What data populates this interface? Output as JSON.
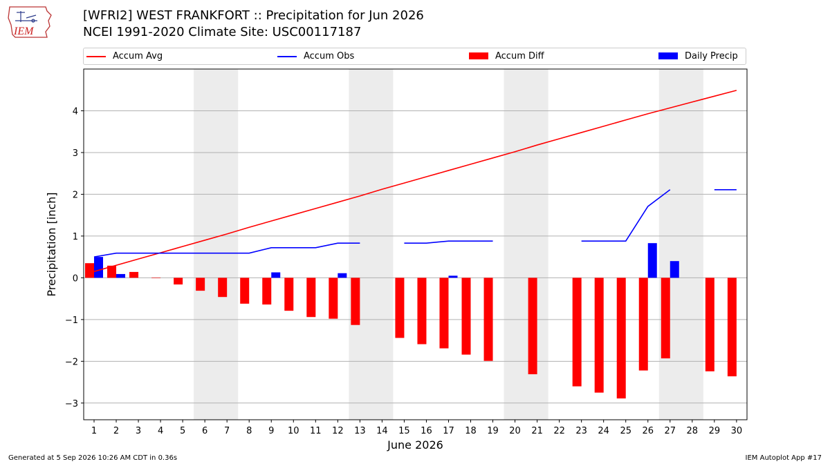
{
  "logo": {
    "text": "IEM",
    "icon": "iem-logo-iowa-map"
  },
  "header": {
    "title_line1": "[WFRI2] WEST FRANKFORT :: Precipitation for Jun 2026",
    "title_line2": "NCEI 1991-2020 Climate Site: USC00117187"
  },
  "footer": {
    "left": "Generated at 5 Sep 2026 10:26 AM CDT in 0.36s",
    "right": "IEM Autoplot App #17"
  },
  "legend": {
    "items": [
      {
        "label": "Accum Avg",
        "kind": "line",
        "color": "#ff0000"
      },
      {
        "label": "Accum Obs",
        "kind": "line",
        "color": "#0000ff"
      },
      {
        "label": "Accum Diff",
        "kind": "bar",
        "color": "#ff0000"
      },
      {
        "label": "Daily Precip",
        "kind": "bar",
        "color": "#0000ff"
      }
    ]
  },
  "chart_data": {
    "type": "bar",
    "title": "[WFRI2] WEST FRANKFORT :: Precipitation for Jun 2026",
    "subtitle": "NCEI 1991-2020 Climate Site: USC00117187",
    "xlabel": "June 2026",
    "ylabel": "Precipitation [inch]",
    "ylim": [
      -3.4,
      5.0
    ],
    "yticks": [
      -3,
      -2,
      -1,
      0,
      1,
      2,
      3,
      4
    ],
    "ytick_labels": [
      "−3",
      "−2",
      "−1",
      "0",
      "1",
      "2",
      "3",
      "4"
    ],
    "days": [
      1,
      2,
      3,
      4,
      5,
      6,
      7,
      8,
      9,
      10,
      11,
      12,
      13,
      14,
      15,
      16,
      17,
      18,
      19,
      20,
      21,
      22,
      23,
      24,
      25,
      26,
      27,
      28,
      29,
      30
    ],
    "weekend_bands": [
      [
        6,
        7
      ],
      [
        13,
        14
      ],
      [
        20,
        21
      ],
      [
        27,
        28
      ]
    ],
    "grid": "horizontal",
    "legend_position": "top",
    "series": [
      {
        "name": "Accum Avg",
        "kind": "line",
        "color": "#ff0000",
        "values": [
          0.15,
          0.3,
          0.45,
          0.6,
          0.75,
          0.9,
          1.05,
          1.21,
          1.36,
          1.51,
          1.66,
          1.81,
          1.96,
          2.12,
          2.27,
          2.42,
          2.57,
          2.72,
          2.87,
          3.02,
          3.18,
          3.33,
          3.48,
          3.63,
          3.78,
          3.93,
          4.07,
          4.21,
          4.35,
          4.49
        ]
      },
      {
        "name": "Accum Obs",
        "kind": "line",
        "color": "#0000ff",
        "values": [
          0.5,
          0.59,
          0.59,
          0.59,
          0.59,
          0.59,
          0.59,
          0.59,
          0.72,
          0.72,
          0.72,
          0.83,
          0.83,
          null,
          0.83,
          0.83,
          0.88,
          0.88,
          0.88,
          null,
          null,
          null,
          0.88,
          0.88,
          0.88,
          1.71,
          2.11,
          null,
          2.11,
          2.11
        ]
      },
      {
        "name": "Accum Diff",
        "kind": "bar",
        "color": "#ff0000",
        "values": [
          0.35,
          0.29,
          0.14,
          -0.01,
          -0.16,
          -0.31,
          -0.46,
          -0.62,
          -0.64,
          -0.79,
          -0.94,
          -0.98,
          -1.13,
          null,
          -1.44,
          -1.59,
          -1.69,
          -1.84,
          -1.99,
          null,
          -2.31,
          null,
          -2.6,
          -2.75,
          -2.89,
          -2.22,
          -1.93,
          null,
          -2.24,
          -2.36
        ]
      },
      {
        "name": "Daily Precip",
        "kind": "bar",
        "color": "#0000ff",
        "values": [
          0.5,
          0.09,
          0,
          0,
          0,
          0,
          0,
          0,
          0.13,
          0,
          0,
          0.11,
          0,
          null,
          0,
          0,
          0.05,
          0,
          0,
          null,
          0,
          null,
          0,
          0,
          0,
          0.83,
          0.4,
          null,
          0,
          0
        ]
      }
    ]
  }
}
